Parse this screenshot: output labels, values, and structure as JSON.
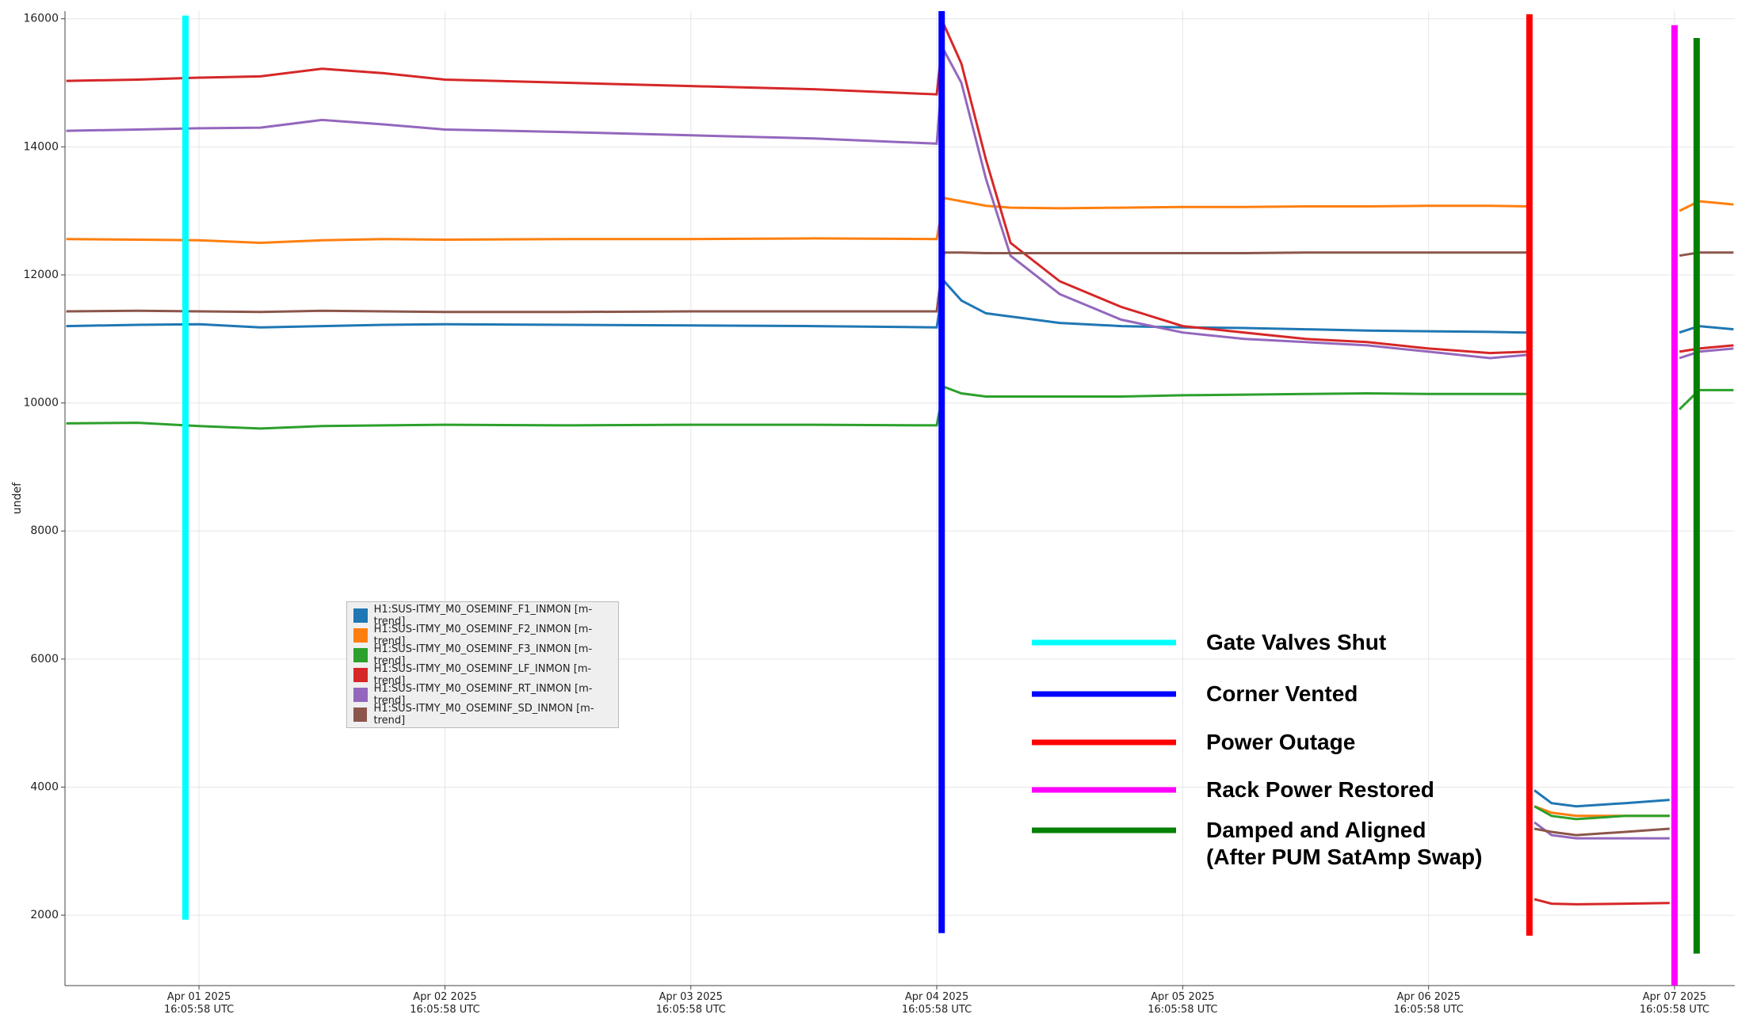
{
  "chart_data": {
    "type": "line",
    "ylabel": "undef",
    "xlim": [
      -0.545,
      6.245
    ],
    "ylim": [
      900,
      16120
    ],
    "xticks": [
      {
        "value": 0,
        "label": "Apr 01 2025\n16:05:58 UTC"
      },
      {
        "value": 1,
        "label": "Apr 02 2025\n16:05:58 UTC"
      },
      {
        "value": 2,
        "label": "Apr 03 2025\n16:05:58 UTC"
      },
      {
        "value": 3,
        "label": "Apr 04 2025\n16:05:58 UTC"
      },
      {
        "value": 4,
        "label": "Apr 05 2025\n16:05:58 UTC"
      },
      {
        "value": 5,
        "label": "Apr 06 2025\n16:05:58 UTC"
      },
      {
        "value": 6,
        "label": "Apr 07 2025\n16:05:58 UTC"
      }
    ],
    "yticks": [
      2000,
      4000,
      6000,
      8000,
      10000,
      12000,
      14000,
      16000
    ],
    "grid": true,
    "x": [
      -0.54,
      -0.25,
      0,
      0.25,
      0.5,
      0.75,
      1,
      1.5,
      2,
      2.5,
      3.0,
      3.03,
      3.1,
      3.2,
      3.3,
      3.5,
      3.75,
      4,
      4.25,
      4.5,
      4.75,
      5,
      5.25,
      5.4,
      5.41,
      5.43,
      5.5,
      5.6,
      5.8,
      5.98,
      5.99,
      6.02,
      6.1,
      6.24
    ],
    "series": [
      {
        "name": "H1:SUS-ITMY_M0_OSEMINF_F1_INMON [m-trend]",
        "color": "#1f77b4",
        "values": [
          11200,
          11220,
          11230,
          11180,
          11200,
          11220,
          11230,
          11220,
          11210,
          11200,
          11180,
          11900,
          11600,
          11400,
          11350,
          11250,
          11200,
          11180,
          11170,
          11150,
          11130,
          11120,
          11110,
          11100,
          null,
          3950,
          3750,
          3700,
          3750,
          3800,
          null,
          11100,
          11200,
          11150
        ]
      },
      {
        "name": "H1:SUS-ITMY_M0_OSEMINF_F2_INMON [m-trend]",
        "color": "#ff7f0e",
        "values": [
          12560,
          12550,
          12540,
          12500,
          12540,
          12560,
          12550,
          12560,
          12560,
          12570,
          12560,
          13200,
          13150,
          13080,
          13050,
          13040,
          13050,
          13060,
          13060,
          13070,
          13070,
          13080,
          13080,
          13070,
          null,
          3700,
          3600,
          3550,
          3550,
          3550,
          null,
          13000,
          13150,
          13100
        ]
      },
      {
        "name": "H1:SUS-ITMY_M0_OSEMINF_F3_INMON [m-trend]",
        "color": "#2ca02c",
        "values": [
          9680,
          9690,
          9640,
          9600,
          9640,
          9650,
          9660,
          9650,
          9660,
          9660,
          9650,
          10250,
          10150,
          10100,
          10100,
          10100,
          10100,
          10120,
          10130,
          10140,
          10150,
          10140,
          10140,
          10140,
          null,
          3700,
          3550,
          3500,
          3550,
          3550,
          null,
          9900,
          10200,
          10200
        ]
      },
      {
        "name": "H1:SUS-ITMY_M0_OSEMINF_LF_INMON [m-trend]",
        "color": "#d62728",
        "values": [
          15030,
          15050,
          15080,
          15100,
          15220,
          15150,
          15050,
          15000,
          14950,
          14900,
          14820,
          15900,
          15300,
          13800,
          12500,
          11900,
          11500,
          11200,
          11100,
          11000,
          10950,
          10850,
          10780,
          10800,
          null,
          2250,
          2180,
          2170,
          2180,
          2190,
          null,
          10800,
          10850,
          10900
        ]
      },
      {
        "name": "H1:SUS-ITMY_M0_OSEMINF_RT_INMON [m-trend]",
        "color": "#9467bd",
        "values": [
          14250,
          14270,
          14290,
          14300,
          14420,
          14350,
          14270,
          14230,
          14180,
          14130,
          14050,
          15500,
          15000,
          13500,
          12300,
          11700,
          11300,
          11100,
          11000,
          10950,
          10900,
          10800,
          10700,
          10750,
          null,
          3450,
          3250,
          3200,
          3200,
          3200,
          null,
          10700,
          10800,
          10850
        ]
      },
      {
        "name": "H1:SUS-ITMY_M0_OSEMINF_SD_INMON [m-trend]",
        "color": "#8c564b",
        "values": [
          11430,
          11440,
          11430,
          11420,
          11440,
          11430,
          11420,
          11420,
          11430,
          11430,
          11430,
          12350,
          12350,
          12340,
          12340,
          12340,
          12340,
          12340,
          12340,
          12350,
          12350,
          12350,
          12350,
          12350,
          null,
          3350,
          3300,
          3250,
          3300,
          3350,
          null,
          12300,
          12350,
          12350
        ]
      }
    ],
    "annotations": [
      {
        "label": "Gate Valves Shut",
        "color": "#00ffff",
        "x": -0.055,
        "y": [
          1930,
          16050
        ]
      },
      {
        "label": "Corner Vented",
        "color": "#0000ff",
        "x": 3.02,
        "y": [
          1720,
          16120
        ]
      },
      {
        "label": "Power Outage",
        "color": "#ff0000",
        "x": 5.41,
        "y": [
          1680,
          16070
        ]
      },
      {
        "label": "Rack Power Restored",
        "color": "#ff00ff",
        "x": 6.0,
        "y": [
          900,
          15900
        ]
      },
      {
        "label": "Damped and Aligned\n(After PUM SatAmp Swap)",
        "color": "#008000",
        "x": 6.09,
        "y": [
          1400,
          15700
        ]
      }
    ]
  }
}
